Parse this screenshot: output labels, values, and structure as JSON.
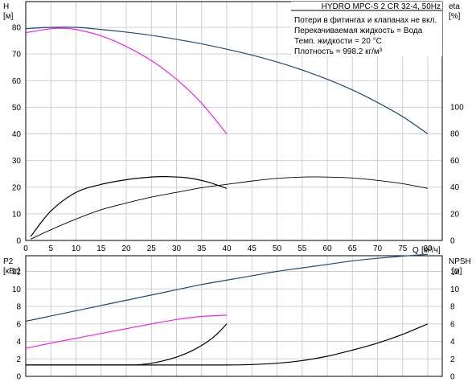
{
  "chart_data": [
    {
      "type": "line",
      "title": "HYDRO MPC-S 2 CR 32-4, 50Hz",
      "notes": [
        "Потери в фитингах и клапанах не вкл.",
        "Перекачиваемая жидкость = Вода",
        "Темп. жидкости = 20 °C",
        "Плотность = 998.2 кг/м³"
      ],
      "xlabel": "Q",
      "xunit": "[м³/ч]",
      "xlim": [
        0,
        82
      ],
      "xticks": [
        "0",
        "5",
        "10",
        "15",
        "20",
        "25",
        "30",
        "35",
        "40",
        "45",
        "50",
        "55",
        "60",
        "65",
        "70",
        "75",
        "80"
      ],
      "ylabel_left": "H",
      "yunit_left": "[м]",
      "ylim_left": [
        0,
        80
      ],
      "yticks_left": [
        "0",
        "10",
        "20",
        "30",
        "40",
        "50",
        "60",
        "70",
        "80"
      ],
      "ylabel_right": "eta",
      "yunit_right": "[%]",
      "ylim_right": [
        0,
        100
      ],
      "yticks_right": [
        "0",
        "20",
        "40",
        "60",
        "80",
        "100"
      ],
      "grid": true,
      "series": [
        {
          "axis": "left",
          "color": "#1a4a7a",
          "x": [
            0,
            5,
            10,
            15,
            20,
            25,
            30,
            35,
            40,
            45,
            50,
            55,
            60,
            65,
            70,
            75,
            80
          ],
          "y": [
            79.5,
            80.0,
            80.0,
            79.2,
            78.2,
            77.0,
            75.5,
            73.8,
            71.8,
            69.6,
            67.0,
            64.0,
            60.5,
            56.5,
            51.8,
            46.5,
            40.0
          ]
        },
        {
          "axis": "left",
          "color": "#ee22ee",
          "x": [
            0,
            5,
            7.5,
            10,
            15,
            20,
            25,
            30,
            35,
            40
          ],
          "y": [
            78.0,
            79.5,
            79.6,
            79.2,
            76.8,
            72.8,
            67.5,
            60.5,
            51.5,
            40.0
          ]
        },
        {
          "axis": "right",
          "color": "#000000",
          "x": [
            1,
            5,
            10,
            15,
            20,
            25,
            28,
            32,
            36,
            40
          ],
          "y": [
            3,
            22,
            36,
            42,
            45.5,
            47.5,
            47.8,
            47,
            44,
            39
          ]
        },
        {
          "axis": "right",
          "color": "#000000",
          "x": [
            1,
            5,
            10,
            15,
            20,
            25,
            30,
            35,
            40,
            45,
            50,
            55,
            60,
            65,
            70,
            75,
            80
          ],
          "y": [
            1,
            8,
            16,
            23,
            28,
            32.5,
            36,
            39.5,
            42,
            44.5,
            46.5,
            47.5,
            47.5,
            46.8,
            45,
            42.5,
            39
          ]
        }
      ]
    },
    {
      "type": "line",
      "xlim": [
        0,
        82
      ],
      "ylabel_left": "P2",
      "yunit_left": "[кВт]",
      "ylim_left": [
        0,
        14
      ],
      "yticks_left": [
        "0",
        "2",
        "4",
        "6",
        "8",
        "10",
        "12"
      ],
      "ylabel_right": "NPSH",
      "yunit_right": "[м]",
      "ylim_right": [
        0,
        14
      ],
      "yticks_right": [
        "0",
        "2",
        "4",
        "6",
        "8",
        "10",
        "12"
      ],
      "grid": true,
      "series": [
        {
          "axis": "left",
          "color": "#1a4a7a",
          "x": [
            0,
            5,
            10,
            15,
            20,
            25,
            30,
            35,
            40,
            45,
            50,
            55,
            60,
            65,
            70,
            75,
            80
          ],
          "y": [
            6.3,
            6.9,
            7.5,
            8.1,
            8.7,
            9.3,
            9.9,
            10.5,
            11.0,
            11.5,
            12.0,
            12.4,
            12.8,
            13.2,
            13.5,
            13.75,
            13.95
          ]
        },
        {
          "axis": "left",
          "color": "#ee22ee",
          "x": [
            0,
            5,
            10,
            15,
            20,
            25,
            30,
            35,
            40
          ],
          "y": [
            3.2,
            3.8,
            4.35,
            4.9,
            5.45,
            6.0,
            6.5,
            6.85,
            7.0
          ]
        },
        {
          "axis": "right",
          "color": "#000000",
          "x": [
            0,
            10,
            20,
            23,
            26,
            30,
            33,
            36,
            38,
            40
          ],
          "y": [
            1.3,
            1.3,
            1.3,
            1.35,
            1.6,
            2.2,
            2.9,
            3.9,
            4.8,
            6.0
          ]
        },
        {
          "axis": "right",
          "color": "#000000",
          "x": [
            0,
            10,
            20,
            30,
            40,
            45,
            50,
            55,
            60,
            65,
            70,
            75,
            80
          ],
          "y": [
            1.3,
            1.3,
            1.3,
            1.3,
            1.3,
            1.35,
            1.5,
            1.8,
            2.3,
            3.0,
            3.8,
            4.8,
            6.0
          ]
        }
      ]
    }
  ]
}
